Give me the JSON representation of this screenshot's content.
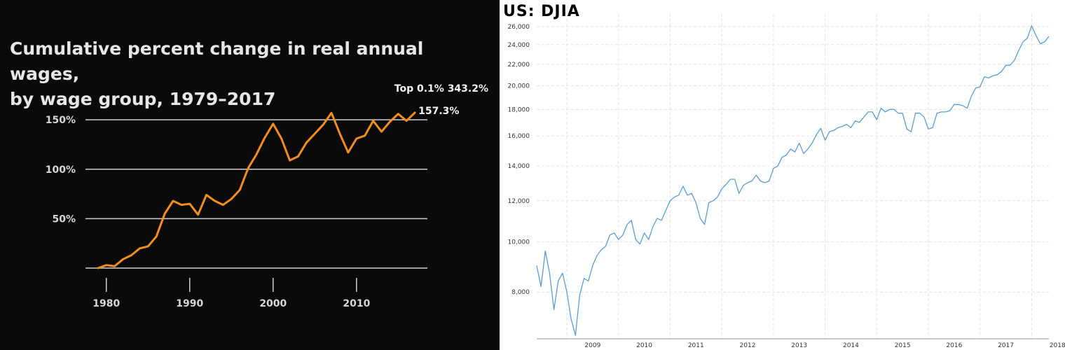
{
  "chart_data": [
    {
      "type": "line",
      "title": "Cumulative percent change in real annual wages,\nby wage group, 1979–2017",
      "xlabel": "",
      "ylabel": "",
      "x_ticks": [
        1980,
        1990,
        2000,
        2010
      ],
      "x_tick_labels": [
        "1980",
        "1990",
        "2000",
        "2010"
      ],
      "y_ticks": [
        50,
        100,
        150
      ],
      "y_tick_labels": [
        "50%",
        "100%",
        "150%"
      ],
      "xlim": [
        1977.5,
        2018.5
      ],
      "ylim": [
        0,
        165
      ],
      "grid": "horizontal",
      "line_color": "#f28e1c",
      "annotations": [
        "Top 0.1% 343.2%",
        "157.3%"
      ],
      "series": [
        {
          "x": [
            1979,
            1980,
            1981,
            1982,
            1983,
            1984,
            1985,
            1986,
            1987,
            1988,
            1989,
            1990,
            1991,
            1992,
            1993,
            1994,
            1995,
            1996,
            1997,
            1998,
            1999,
            2000,
            2001,
            2002,
            2003,
            2004,
            2005,
            2006,
            2007,
            2008,
            2009,
            2010,
            2011,
            2012,
            2013,
            2014,
            2015,
            2016,
            2017
          ],
          "y": [
            0,
            3,
            2,
            9,
            13,
            20,
            22,
            32,
            55,
            68,
            64,
            65,
            54,
            74,
            68,
            64,
            70,
            79,
            101,
            115,
            132,
            146,
            131,
            109,
            113,
            127,
            136,
            145,
            157,
            136,
            117,
            131,
            134,
            149,
            138,
            148,
            156,
            149,
            157.3
          ]
        }
      ]
    },
    {
      "type": "line",
      "title": "US: DJIA",
      "xlabel": "",
      "ylabel": "",
      "scale": "log",
      "line_color": "#5b9bd5",
      "grid": "dashed",
      "x_tick_labels": [
        "2009",
        "2010",
        "2011",
        "2012",
        "2013",
        "2014",
        "2015",
        "2016",
        "2017",
        "2018"
      ],
      "y_ticks": [
        8000,
        10000,
        12000,
        14000,
        16000,
        18000,
        20000,
        22000,
        24000,
        26000
      ],
      "y_tick_labels": [
        "8,000",
        "10,000",
        "12,000",
        "14,000",
        "16,000",
        "18,000",
        "20,000",
        "22,000",
        "24,000",
        "26,000"
      ],
      "xlim": [
        "2008-06",
        "2018-05"
      ],
      "ylim": [
        6500,
        27500
      ],
      "series": [
        {
          "x": [
            "2008-06",
            "2008-07",
            "2008-08",
            "2008-09",
            "2008-10",
            "2008-11",
            "2008-12",
            "2009-01",
            "2009-02",
            "2009-03",
            "2009-04",
            "2009-05",
            "2009-06",
            "2009-07",
            "2009-08",
            "2009-09",
            "2009-10",
            "2009-11",
            "2009-12",
            "2010-01",
            "2010-02",
            "2010-03",
            "2010-04",
            "2010-05",
            "2010-06",
            "2010-07",
            "2010-08",
            "2010-09",
            "2010-10",
            "2010-11",
            "2010-12",
            "2011-01",
            "2011-02",
            "2011-03",
            "2011-04",
            "2011-05",
            "2011-06",
            "2011-07",
            "2011-08",
            "2011-09",
            "2011-10",
            "2011-11",
            "2011-12",
            "2012-01",
            "2012-02",
            "2012-03",
            "2012-04",
            "2012-05",
            "2012-06",
            "2012-07",
            "2012-08",
            "2012-09",
            "2012-10",
            "2012-11",
            "2012-12",
            "2013-01",
            "2013-02",
            "2013-03",
            "2013-04",
            "2013-05",
            "2013-06",
            "2013-07",
            "2013-08",
            "2013-09",
            "2013-10",
            "2013-11",
            "2013-12",
            "2014-01",
            "2014-02",
            "2014-03",
            "2014-04",
            "2014-05",
            "2014-06",
            "2014-07",
            "2014-08",
            "2014-09",
            "2014-10",
            "2014-11",
            "2014-12",
            "2015-01",
            "2015-02",
            "2015-03",
            "2015-04",
            "2015-05",
            "2015-06",
            "2015-07",
            "2015-08",
            "2015-09",
            "2015-10",
            "2015-11",
            "2015-12",
            "2016-01",
            "2016-02",
            "2016-03",
            "2016-04",
            "2016-05",
            "2016-06",
            "2016-07",
            "2016-08",
            "2016-09",
            "2016-10",
            "2016-11",
            "2016-12",
            "2017-01",
            "2017-02",
            "2017-03",
            "2017-04",
            "2017-05",
            "2017-06",
            "2017-07",
            "2017-08",
            "2017-09",
            "2017-10",
            "2017-11",
            "2017-12",
            "2018-01",
            "2018-02",
            "2018-03",
            "2018-04",
            "2018-05"
          ],
          "y": [
            9000,
            8200,
            9600,
            8700,
            7400,
            8400,
            8700,
            8000,
            7100,
            6600,
            7900,
            8500,
            8400,
            9000,
            9400,
            9650,
            9800,
            10300,
            10400,
            10100,
            10300,
            10800,
            11000,
            10100,
            9900,
            10400,
            10100,
            10700,
            11100,
            11000,
            11500,
            12000,
            12200,
            12300,
            12800,
            12300,
            12400,
            11900,
            11100,
            10800,
            11900,
            12000,
            12200,
            12650,
            12900,
            13200,
            13200,
            12400,
            12850,
            13000,
            13100,
            13450,
            13100,
            13000,
            13100,
            13850,
            14000,
            14550,
            14700,
            15100,
            14900,
            15500,
            14800,
            15100,
            15500,
            16100,
            16550,
            15700,
            16300,
            16400,
            16600,
            16700,
            16850,
            16600,
            17100,
            17000,
            17400,
            17800,
            17800,
            17200,
            18100,
            17800,
            18000,
            18000,
            17700,
            17700,
            16500,
            16300,
            17700,
            17700,
            17400,
            16500,
            16600,
            17700,
            17800,
            17800,
            17900,
            18400,
            18400,
            18300,
            18100,
            19100,
            19800,
            19900,
            20800,
            20700,
            20900,
            21000,
            21300,
            21900,
            21900,
            22400,
            23400,
            24300,
            24700,
            26100,
            25000,
            24100,
            24300,
            24900
          ]
        }
      ]
    }
  ]
}
